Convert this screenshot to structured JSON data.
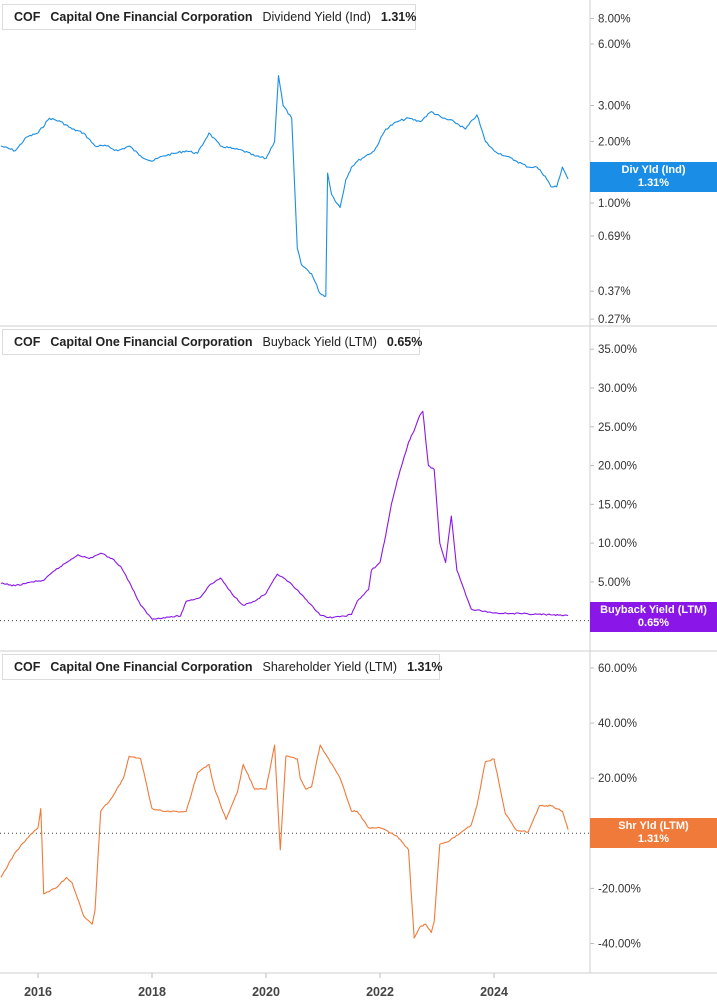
{
  "colors": {
    "div": "#1a8ee6",
    "buyback": "#8a17e8",
    "shr": "#f07a3a",
    "grid": "#d0d0d0"
  },
  "panels": [
    {
      "ticker": "COF",
      "company": "Capital One Financial Corporation",
      "metric": "Dividend Yield (Ind)",
      "value": "1.31%",
      "badge_line1": "Div Yld (Ind)",
      "badge_line2": "1.31%"
    },
    {
      "ticker": "COF",
      "company": "Capital One Financial Corporation",
      "metric": "Buyback Yield (LTM)",
      "value": "0.65%",
      "badge_line1": "Buyback Yield (LTM)",
      "badge_line2": "0.65%"
    },
    {
      "ticker": "COF",
      "company": "Capital One Financial Corporation",
      "metric": "Shareholder Yield (LTM)",
      "value": "1.31%",
      "badge_line1": "Shr Yld (LTM)",
      "badge_line2": "1.31%"
    }
  ],
  "x_ticks": [
    "2016",
    "2018",
    "2020",
    "2022",
    "2024"
  ],
  "chart_data": [
    {
      "type": "line",
      "title": "",
      "series": [
        {
          "name": "Dividend Yield (Ind)",
          "color": "#1a8ee6",
          "x": [
            2015.35,
            2015.6,
            2015.8,
            2016.0,
            2016.2,
            2016.4,
            2016.6,
            2016.8,
            2017.0,
            2017.2,
            2017.4,
            2017.6,
            2017.8,
            2018.0,
            2018.2,
            2018.4,
            2018.6,
            2018.8,
            2019.0,
            2019.2,
            2019.4,
            2019.6,
            2019.8,
            2020.0,
            2020.15,
            2020.22,
            2020.3,
            2020.45,
            2020.55,
            2020.62,
            2020.8,
            2020.95,
            2021.05,
            2021.08,
            2021.15,
            2021.3,
            2021.4,
            2021.5,
            2021.6,
            2021.75,
            2021.9,
            2022.1,
            2022.3,
            2022.5,
            2022.7,
            2022.9,
            2023.1,
            2023.3,
            2023.5,
            2023.7,
            2023.85,
            2024.0,
            2024.2,
            2024.4,
            2024.6,
            2024.75,
            2024.9,
            2025.0,
            2025.1,
            2025.2,
            2025.3
          ],
          "y": [
            1.9,
            1.8,
            2.1,
            2.2,
            2.6,
            2.5,
            2.3,
            2.2,
            1.9,
            1.9,
            1.8,
            1.9,
            1.7,
            1.6,
            1.7,
            1.75,
            1.8,
            1.75,
            2.2,
            1.9,
            1.85,
            1.8,
            1.7,
            1.65,
            2.0,
            4.2,
            3.0,
            2.6,
            0.6,
            0.5,
            0.45,
            0.36,
            0.35,
            1.4,
            1.1,
            0.95,
            1.3,
            1.5,
            1.6,
            1.7,
            1.8,
            2.3,
            2.5,
            2.6,
            2.5,
            2.8,
            2.6,
            2.5,
            2.3,
            2.7,
            2.0,
            1.8,
            1.7,
            1.6,
            1.5,
            1.5,
            1.35,
            1.2,
            1.2,
            1.5,
            1.31
          ]
        }
      ],
      "ylim": [
        0.25,
        9.0
      ],
      "yscale": "log",
      "yticks": [
        0.27,
        0.37,
        0.69,
        1.0,
        2.0,
        3.0,
        6.0,
        8.0
      ],
      "ytick_labels": [
        "0.27%",
        "0.37%",
        "0.69%",
        "1.00%",
        "2.00%",
        "3.00%",
        "6.00%",
        "8.00%"
      ],
      "xlim": [
        2015.35,
        2025.9
      ]
    },
    {
      "type": "line",
      "title": "",
      "series": [
        {
          "name": "Buyback Yield (LTM)",
          "color": "#8a17e8",
          "x": [
            2015.35,
            2015.6,
            2015.9,
            2016.1,
            2016.3,
            2016.5,
            2016.7,
            2016.9,
            2017.1,
            2017.3,
            2017.45,
            2017.6,
            2017.8,
            2018.0,
            2018.2,
            2018.5,
            2018.6,
            2018.85,
            2019.0,
            2019.2,
            2019.4,
            2019.6,
            2019.8,
            2020.0,
            2020.2,
            2020.4,
            2020.6,
            2020.8,
            2020.95,
            2021.1,
            2021.3,
            2021.5,
            2021.6,
            2021.8,
            2021.85,
            2022.0,
            2022.1,
            2022.2,
            2022.3,
            2022.4,
            2022.5,
            2022.6,
            2022.7,
            2022.75,
            2022.85,
            2022.95,
            2023.05,
            2023.15,
            2023.25,
            2023.35,
            2023.45,
            2023.6,
            2024.0,
            2024.5,
            2025.0,
            2025.3
          ],
          "y": [
            4.8,
            4.5,
            5.0,
            5.2,
            6.5,
            7.5,
            8.5,
            8.0,
            8.7,
            8.0,
            7.0,
            5.0,
            2.0,
            0.2,
            0.4,
            0.6,
            2.5,
            3.0,
            4.5,
            5.5,
            3.5,
            2.0,
            2.5,
            3.5,
            6.0,
            5.0,
            3.5,
            2.0,
            0.7,
            0.4,
            0.5,
            0.8,
            2.5,
            4.0,
            6.5,
            7.5,
            11.0,
            15.0,
            18.0,
            20.5,
            23.0,
            24.5,
            26.5,
            27.0,
            20.0,
            19.5,
            10.0,
            7.5,
            13.5,
            6.5,
            4.5,
            1.5,
            1.0,
            0.9,
            0.75,
            0.65
          ]
        }
      ],
      "ylim": [
        -0.3,
        35.8
      ],
      "yticks": [
        0,
        5,
        10,
        15,
        20,
        25,
        30,
        35
      ],
      "ytick_labels": [
        "0.00%",
        "5.00%",
        "10.00%",
        "15.00%",
        "20.00%",
        "25.00%",
        "30.00%",
        "35.00%"
      ],
      "xlim": [
        2015.35,
        2025.9
      ]
    },
    {
      "type": "line",
      "title": "",
      "series": [
        {
          "name": "Shareholder Yield (LTM)",
          "color": "#f07a3a",
          "x": [
            2015.35,
            2015.6,
            2015.8,
            2016.0,
            2016.05,
            2016.1,
            2016.3,
            2016.5,
            2016.6,
            2016.8,
            2016.95,
            2017.0,
            2017.1,
            2017.3,
            2017.5,
            2017.6,
            2017.8,
            2018.0,
            2018.2,
            2018.4,
            2018.6,
            2018.8,
            2019.0,
            2019.1,
            2019.3,
            2019.5,
            2019.6,
            2019.8,
            2020.0,
            2020.15,
            2020.25,
            2020.35,
            2020.55,
            2020.6,
            2020.7,
            2020.8,
            2020.95,
            2021.1,
            2021.3,
            2021.5,
            2021.6,
            2021.8,
            2022.0,
            2022.3,
            2022.5,
            2022.6,
            2022.7,
            2022.8,
            2022.9,
            2022.95,
            2023.05,
            2023.2,
            2023.4,
            2023.6,
            2023.7,
            2023.85,
            2024.0,
            2024.2,
            2024.4,
            2024.6,
            2024.8,
            2025.0,
            2025.2,
            2025.3
          ],
          "y": [
            -16.0,
            -7.0,
            -2.0,
            2.0,
            9.0,
            -22.0,
            -20.0,
            -16.0,
            -18.0,
            -30.0,
            -33.0,
            -28.0,
            8.0,
            13.0,
            20.0,
            28.0,
            27.0,
            9.0,
            8.0,
            8.0,
            8.0,
            22.0,
            25.0,
            16.0,
            5.0,
            15.0,
            25.0,
            16.0,
            16.0,
            32.0,
            -6.0,
            28.0,
            27.0,
            20.0,
            16.0,
            17.0,
            32.0,
            27.0,
            20.0,
            8.0,
            8.0,
            2.0,
            2.0,
            -1.0,
            -6.0,
            -38.0,
            -34.0,
            -33.0,
            -36.0,
            -32.0,
            -4.0,
            -3.0,
            0.0,
            3.0,
            10.0,
            26.0,
            27.0,
            7.0,
            1.0,
            0.5,
            10.0,
            10.0,
            8.0,
            1.31
          ]
        }
      ],
      "ylim": [
        -42.0,
        60.0
      ],
      "yticks": [
        -40,
        -20,
        0,
        20,
        40,
        60
      ],
      "ytick_labels": [
        "-40.00%",
        "-20.00%",
        "0.00%",
        "20.00%",
        "40.00%",
        "60.00%"
      ],
      "xlim": [
        2015.35,
        2025.9
      ]
    }
  ]
}
